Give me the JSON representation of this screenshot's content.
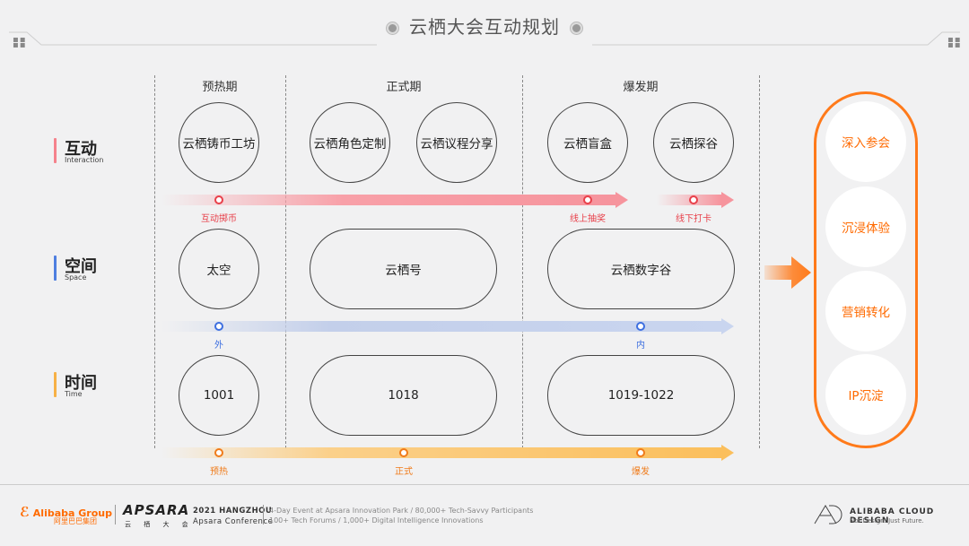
{
  "title": "云栖大会互动规划",
  "phases": [
    "预热期",
    "正式期",
    "爆发期"
  ],
  "rows": {
    "interaction": {
      "cn": "互动",
      "en": "Interaction",
      "color": "#f5828c"
    },
    "space": {
      "cn": "空间",
      "en": "Space",
      "color": "#4f7fe0"
    },
    "time": {
      "cn": "时间",
      "en": "Time",
      "color": "#f7b146"
    }
  },
  "nodes": {
    "interaction": [
      "云栖铸币工坊",
      "云栖角色定制",
      "云栖议程分享",
      "云栖盲盒",
      "云栖探谷"
    ],
    "space": [
      "太空",
      "云栖号",
      "云栖数字谷"
    ],
    "time": [
      "1001",
      "1018",
      "1019-1022"
    ]
  },
  "markers": {
    "interaction": [
      "互动掷币",
      "线上抽奖",
      "线下打卡"
    ],
    "space": [
      "外",
      "内"
    ],
    "time": [
      "预热",
      "正式",
      "爆发"
    ]
  },
  "benefits": [
    "深入参会",
    "沉浸体验",
    "营销转化",
    "IP沉淀"
  ],
  "colors": {
    "accent": "#ff7a1a",
    "interaction_marker": "#e8404a",
    "space_marker": "#3d6fe0",
    "time_marker": "#f07b1a"
  },
  "footer": {
    "alibaba": "Alibaba Group",
    "alibaba_cn": "阿里巴巴集团",
    "apsara": "APSARA",
    "apsara_cn": "云 栖 大 会",
    "year": "2021 HANGZHOU",
    "conference": "Apsara Conference",
    "desc1": "4-Day Event at Apsara Innovation Park  /  80,000+ Tech-Savvy Participants",
    "desc2": "100+ Tech Forums  /  1,000+ Digital Intelligence Innovations",
    "design": "ALIBABA CLOUD DESIGN",
    "design_sub": "Not Design. Just Future."
  }
}
